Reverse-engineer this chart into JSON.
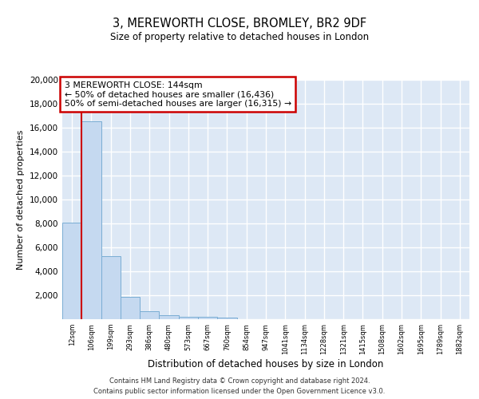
{
  "title": "3, MEREWORTH CLOSE, BROMLEY, BR2 9DF",
  "subtitle": "Size of property relative to detached houses in London",
  "xlabel": "Distribution of detached houses by size in London",
  "ylabel": "Number of detached properties",
  "bar_color": "#c5d9f0",
  "bar_edge_color": "#7aadd4",
  "background_color": "#dde8f5",
  "grid_color": "#ffffff",
  "annotation_box_color": "#cc0000",
  "annotation_text": "3 MEREWORTH CLOSE: 144sqm\n← 50% of detached houses are smaller (16,436)\n50% of semi-detached houses are larger (16,315) →",
  "red_line_x": 1,
  "red_line_color": "#cc0000",
  "footer_line1": "Contains HM Land Registry data © Crown copyright and database right 2024.",
  "footer_line2": "Contains public sector information licensed under the Open Government Licence v3.0.",
  "bin_labels": [
    "12sqm",
    "106sqm",
    "199sqm",
    "293sqm",
    "386sqm",
    "480sqm",
    "573sqm",
    "667sqm",
    "760sqm",
    "854sqm",
    "947sqm",
    "1041sqm",
    "1134sqm",
    "1228sqm",
    "1321sqm",
    "1415sqm",
    "1508sqm",
    "1602sqm",
    "1695sqm",
    "1789sqm",
    "1882sqm"
  ],
  "bar_heights": [
    8100,
    16500,
    5300,
    1850,
    700,
    320,
    200,
    180,
    150,
    10,
    5,
    3,
    2,
    1,
    1,
    0,
    0,
    0,
    0,
    0,
    0
  ],
  "ylim": [
    0,
    20000
  ],
  "yticks": [
    0,
    2000,
    4000,
    6000,
    8000,
    10000,
    12000,
    14000,
    16000,
    18000,
    20000
  ]
}
